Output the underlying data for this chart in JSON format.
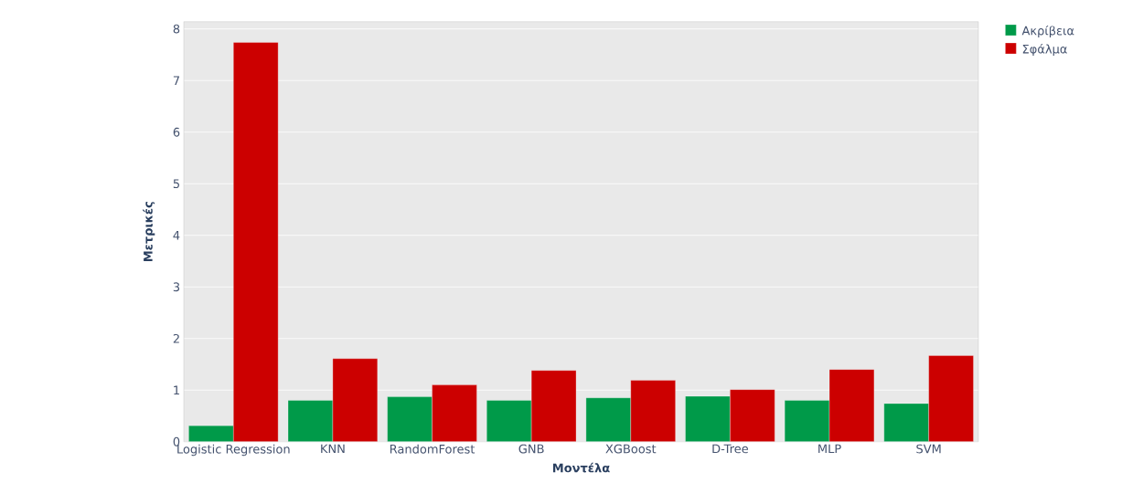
{
  "chart_data": {
    "type": "bar",
    "xlabel": "Μοντέλα",
    "ylabel": "Μετρικές",
    "categories": [
      "Logistic Regression",
      "KNN",
      "RandomForest",
      "GNB",
      "XGBoost",
      "D-Tree",
      "MLP",
      "SVM"
    ],
    "series": [
      {
        "name": "Ακρίβεια",
        "color": "#009a49",
        "values": [
          0.31,
          0.8,
          0.87,
          0.8,
          0.85,
          0.88,
          0.8,
          0.74
        ]
      },
      {
        "name": "Σφάλμα",
        "color": "#cc0000",
        "values": [
          7.74,
          1.61,
          1.1,
          1.38,
          1.19,
          1.01,
          1.4,
          1.67
        ]
      }
    ],
    "ylim": [
      0,
      8.14
    ],
    "yticks": [
      0,
      1,
      2,
      3,
      4,
      5,
      6,
      7,
      8
    ],
    "grid": "y",
    "legend": "top right"
  }
}
